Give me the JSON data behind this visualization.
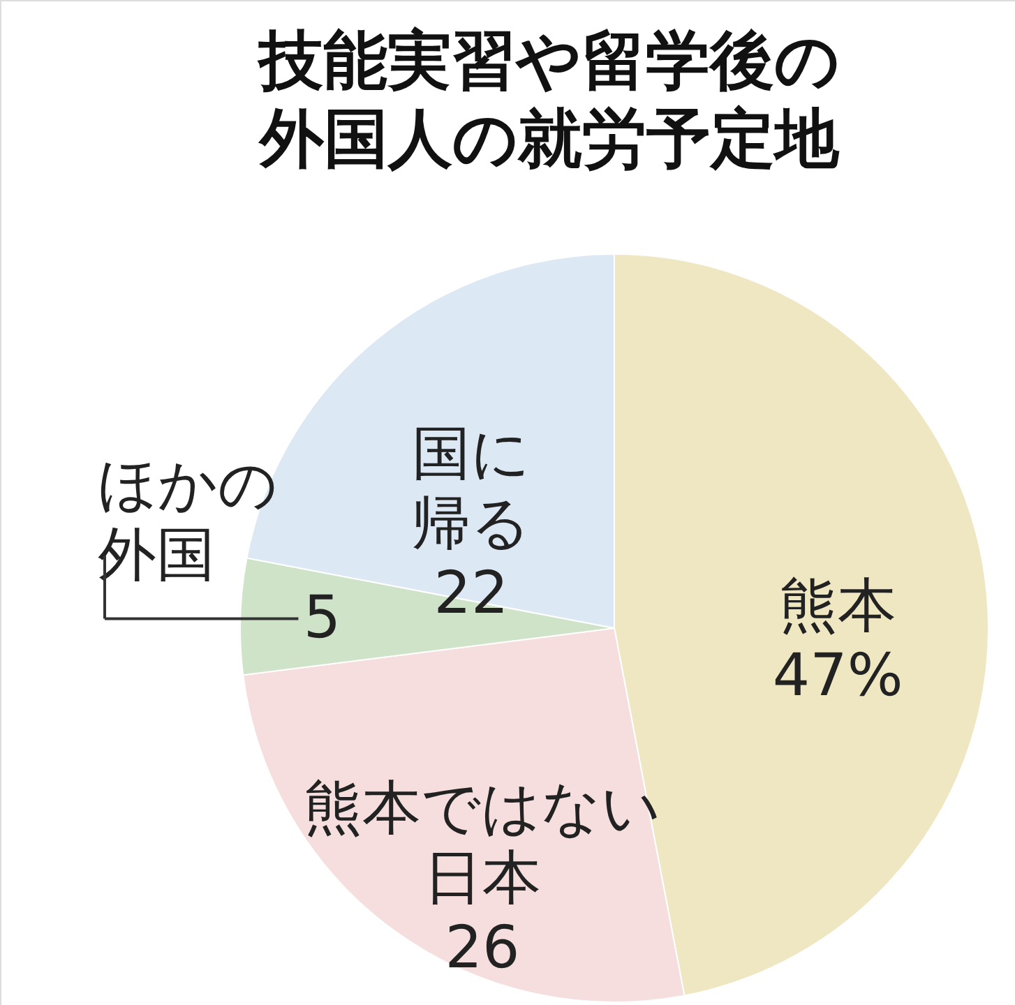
{
  "chart_data": {
    "type": "pie",
    "title": "技能実習や留学後の外国人の就労予定地",
    "categories": [
      "熊本",
      "熊本ではない日本",
      "ほかの外国",
      "国に帰る"
    ],
    "values": [
      47,
      26,
      5,
      22
    ],
    "value_labels": [
      "47%",
      "26",
      "5",
      "22"
    ],
    "colors": [
      "#efe6c2",
      "#f5dedd",
      "#cfe3c8",
      "#dce8f3"
    ],
    "legend": false
  }
}
